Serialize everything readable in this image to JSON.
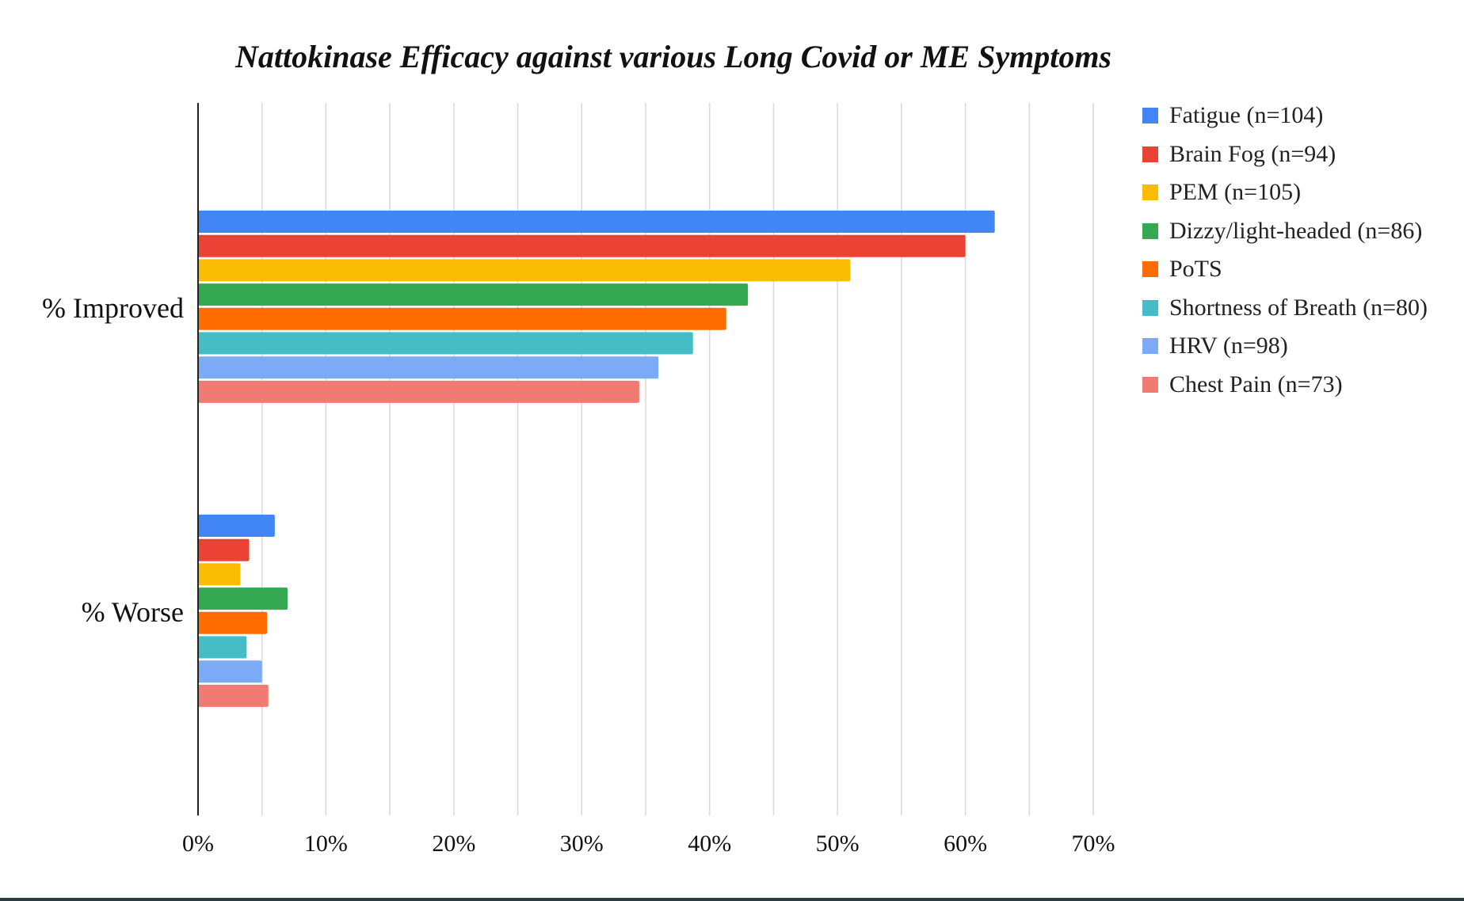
{
  "chart_data": {
    "type": "bar",
    "orientation": "horizontal",
    "title": "Nattokinase Efficacy against various Long Covid or ME Symptoms",
    "categories": [
      "% Improved",
      "% Worse"
    ],
    "series": [
      {
        "name": "Fatigue (n=104)",
        "color": "#4285F4",
        "values": [
          62.3,
          6.0
        ]
      },
      {
        "name": "Brain Fog (n=94)",
        "color": "#EA4335",
        "values": [
          60.0,
          4.0
        ]
      },
      {
        "name": "PEM (n=105)",
        "color": "#FBBC04",
        "values": [
          51.0,
          3.3
        ]
      },
      {
        "name": "Dizzy/light-headed (n=86)",
        "color": "#34A853",
        "values": [
          43.0,
          7.0
        ]
      },
      {
        "name": "PoTS",
        "color": "#FF6D01",
        "values": [
          41.3,
          5.4
        ]
      },
      {
        "name": "Shortness of Breath (n=80)",
        "color": "#46BDC6",
        "values": [
          38.7,
          3.8
        ]
      },
      {
        "name": "HRV (n=98)",
        "color": "#7BAAF7",
        "values": [
          36.0,
          5.0
        ]
      },
      {
        "name": "Chest Pain (n=73)",
        "color": "#F07B72",
        "values": [
          34.5,
          5.5
        ]
      }
    ],
    "xlim": [
      0,
      70
    ],
    "x_ticks": [
      "0%",
      "10%",
      "20%",
      "30%",
      "40%",
      "50%",
      "60%",
      "70%"
    ],
    "grid": "vertical, every 5%",
    "legend_position": "right"
  }
}
